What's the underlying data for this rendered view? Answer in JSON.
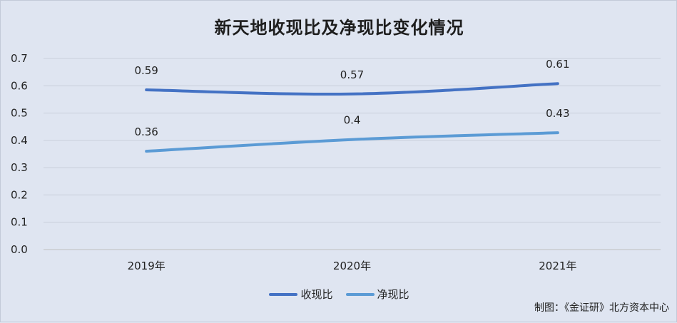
{
  "chart_data": {
    "type": "line",
    "title": "新天地收现比及净现比变化情况",
    "categories": [
      "2019年",
      "2020年",
      "2021年"
    ],
    "series": [
      {
        "name": "收现比",
        "values": [
          0.585,
          0.57,
          0.608
        ],
        "labels": [
          "0.59",
          "0.57",
          "0.61"
        ],
        "color": "#4472c4"
      },
      {
        "name": "净现比",
        "values": [
          0.36,
          0.403,
          0.428
        ],
        "labels": [
          "0.36",
          "0.4",
          "0.43"
        ],
        "color": "#5b9bd5"
      }
    ],
    "ylim": [
      0,
      0.7
    ],
    "yticks": [
      "0.0",
      "0.1",
      "0.2",
      "0.3",
      "0.4",
      "0.5",
      "0.6",
      "0.7"
    ],
    "grid": true,
    "legend_position": "bottom"
  },
  "credit": "制图：《金证研》北方资本中心"
}
